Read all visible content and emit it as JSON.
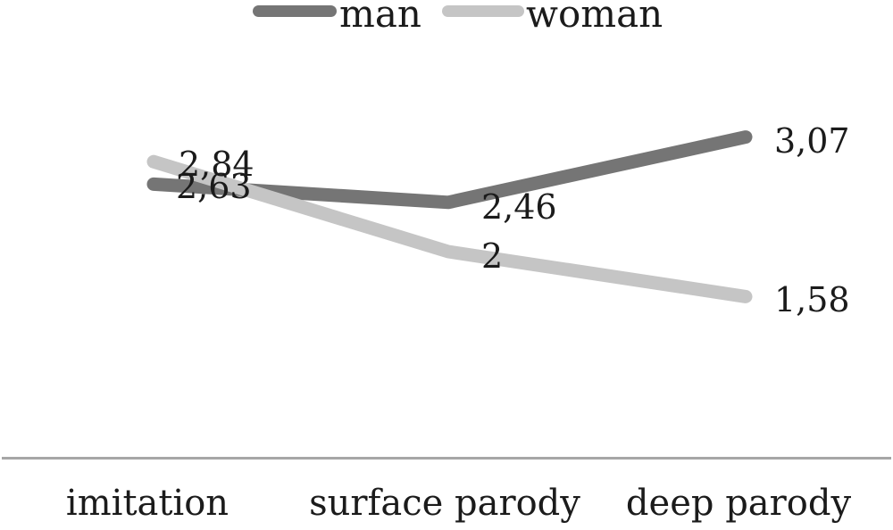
{
  "chart_data": {
    "type": "line",
    "title": "",
    "xlabel": "",
    "ylabel": "",
    "categories": [
      "imitation",
      "surface parody",
      "deep parody"
    ],
    "series": [
      {
        "name": "man",
        "color": "#757575",
        "values": [
          2.63,
          2.46,
          3.07
        ],
        "labels": [
          "2,63",
          "2,46",
          "3,07"
        ]
      },
      {
        "name": "woman",
        "color": "#c5c5c5",
        "values": [
          2.84,
          2,
          1.58
        ],
        "labels": [
          "2,84",
          "2",
          "1,58"
        ]
      }
    ],
    "decimal_separator": ",",
    "legend_position": "top-center",
    "grid": false,
    "y_axis_visible": false,
    "ylim": [
      1.3,
      3.4
    ],
    "axis_line_color": "#a6a6a6",
    "text_color": "#1b1b1b"
  }
}
